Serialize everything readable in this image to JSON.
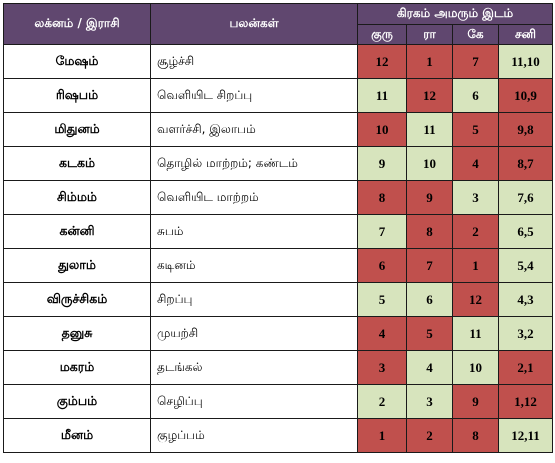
{
  "header": {
    "col_sign": "லக்னம்  /  இராசி",
    "col_benefit": "பலன்கள்",
    "col_planet_pos": "கிரகம்  அமரும்  இடம்",
    "sub_guru": "குரு",
    "sub_ra": "ரா",
    "sub_ke": "கே",
    "sub_sani": "சனி"
  },
  "colors": {
    "header_bg": "#60476f",
    "red_cell": "#c0504d",
    "green_cell": "#d7e4bd"
  },
  "rows": [
    {
      "sign": "மேஷம்",
      "benefit": "சூழ்ச்சி",
      "guru": "12",
      "ra": "1",
      "ke": "7",
      "sani": "11,10",
      "c": [
        "red",
        "red",
        "red",
        "green"
      ]
    },
    {
      "sign": "ரிஷபம்",
      "benefit": "வெளியிட  சிறப்பு",
      "guru": "11",
      "ra": "12",
      "ke": "6",
      "sani": "10,9",
      "c": [
        "green",
        "red",
        "green",
        "red"
      ]
    },
    {
      "sign": "மிதுனம்",
      "benefit": "வளர்ச்சி,  இலாபம்",
      "guru": "10",
      "ra": "11",
      "ke": "5",
      "sani": "9,8",
      "c": [
        "red",
        "green",
        "red",
        "red"
      ]
    },
    {
      "sign": "கடகம்",
      "benefit": "தொழில்  மாற்றம்; கண்டம்",
      "guru": "9",
      "ra": "10",
      "ke": "4",
      "sani": "8,7",
      "c": [
        "green",
        "green",
        "red",
        "red"
      ]
    },
    {
      "sign": "சிம்மம்",
      "benefit": "வெளியிட  மாற்றம்",
      "guru": "8",
      "ra": "9",
      "ke": "3",
      "sani": "7,6",
      "c": [
        "red",
        "red",
        "green",
        "green"
      ]
    },
    {
      "sign": "கன்னி",
      "benefit": "சுபம்",
      "guru": "7",
      "ra": "8",
      "ke": "2",
      "sani": "6,5",
      "c": [
        "green",
        "red",
        "red",
        "green"
      ]
    },
    {
      "sign": "துலாம்",
      "benefit": "கடினம்",
      "guru": "6",
      "ra": "7",
      "ke": "1",
      "sani": "5,4",
      "c": [
        "red",
        "red",
        "red",
        "green"
      ]
    },
    {
      "sign": "விருச்சிகம்",
      "benefit": "சிறப்பு",
      "guru": "5",
      "ra": "6",
      "ke": "12",
      "sani": "4,3",
      "c": [
        "green",
        "green",
        "red",
        "green"
      ]
    },
    {
      "sign": "தனுசு",
      "benefit": "முயற்சி",
      "guru": "4",
      "ra": "5",
      "ke": "11",
      "sani": "3,2",
      "c": [
        "red",
        "red",
        "green",
        "green"
      ]
    },
    {
      "sign": "மகரம்",
      "benefit": "தடங்கல்",
      "guru": "3",
      "ra": "4",
      "ke": "10",
      "sani": "2,1",
      "c": [
        "red",
        "green",
        "green",
        "red"
      ]
    },
    {
      "sign": "கும்பம்",
      "benefit": "செழிப்பு",
      "guru": "2",
      "ra": "3",
      "ke": "9",
      "sani": "1,12",
      "c": [
        "green",
        "green",
        "red",
        "red"
      ]
    },
    {
      "sign": "மீனம்",
      "benefit": "குழப்பம்",
      "guru": "1",
      "ra": "2",
      "ke": "8",
      "sani": "12,11",
      "c": [
        "red",
        "red",
        "red",
        "green"
      ]
    }
  ]
}
